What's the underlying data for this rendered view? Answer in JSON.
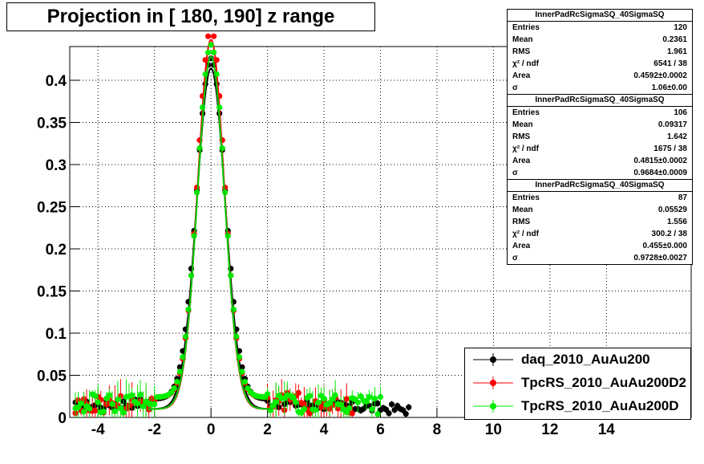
{
  "page_title": "Projection in [ 180, 190] z range",
  "chart_data": {
    "type": "scatter",
    "title": "Projection in [ 180, 190] z range",
    "xlabel": "",
    "ylabel": "",
    "xlim": [
      -5,
      17
    ],
    "ylim": [
      0,
      0.44
    ],
    "grid": true,
    "x_ticks": [
      -4,
      -2,
      0,
      2,
      4,
      6,
      8,
      10,
      12,
      14
    ],
    "y_ticks": [
      0,
      0.05,
      0.1,
      0.15,
      0.2,
      0.25,
      0.3,
      0.35,
      0.4
    ],
    "x_tick_labels": [
      "-4",
      "-2",
      "0",
      "2",
      "4",
      "6",
      "8",
      "10",
      "12",
      "14"
    ],
    "y_tick_labels": [
      "0",
      "0.05",
      "0.1",
      "0.15",
      "0.2",
      "0.25",
      "0.3",
      "0.35",
      "0.4"
    ],
    "legend_position": "bottom-right",
    "series": [
      {
        "name": "daq_2010_AuAu200",
        "color": "#000000",
        "fit_color": "#000000",
        "fit_amplitude": 0.404,
        "fit_sigma": 0.505,
        "xmin": -4.8,
        "xmax": 7.0,
        "bg": 0.022
      },
      {
        "name": "TpcRS_2010_AuAu200D2",
        "color": "#ff0000",
        "fit_color": "#ff0000",
        "fit_amplitude": 0.438,
        "fit_sigma": 0.47,
        "xmin": -4.8,
        "xmax": 5.0,
        "bg": 0.024
      },
      {
        "name": "TpcRS_2010_AuAu200D",
        "color": "#00ee00",
        "fit_color": "#00cc00",
        "fit_amplitude": 0.418,
        "fit_sigma": 0.48,
        "xmin": -4.8,
        "xmax": 6.0,
        "bg": 0.024
      }
    ]
  },
  "stats": [
    {
      "title": "InnerPadRcSigmaSQ_40SigmaSQ",
      "rows": [
        {
          "label": "Entries",
          "value": "120"
        },
        {
          "label": "Mean",
          "value": "0.2361"
        },
        {
          "label": "RMS",
          "value": "1.961"
        },
        {
          "label": "χ² / ndf",
          "value": "6541 / 38"
        },
        {
          "label": "Area",
          "value": "0.4592±0.0002"
        },
        {
          "label": "σ",
          "value": "1.06±0.00"
        }
      ]
    },
    {
      "title": "InnerPadRcSigmaSQ_40SigmaSQ",
      "rows": [
        {
          "label": "Entries",
          "value": "106"
        },
        {
          "label": "Mean",
          "value": "0.09317"
        },
        {
          "label": "RMS",
          "value": "1.642"
        },
        {
          "label": "χ² / ndf",
          "value": "1675 / 38"
        },
        {
          "label": "Area",
          "value": "0.4815±0.0002"
        },
        {
          "label": "σ",
          "value": "0.9684±0.0009"
        }
      ]
    },
    {
      "title": "InnerPadRcSigmaSQ_40SigmaSQ",
      "rows": [
        {
          "label": "Entries",
          "value": "87"
        },
        {
          "label": "Mean",
          "value": "0.05529"
        },
        {
          "label": "RMS",
          "value": "1.556"
        },
        {
          "label": "χ² / ndf",
          "value": "300.2 / 38"
        },
        {
          "label": "Area",
          "value": "0.455±0.000"
        },
        {
          "label": "σ",
          "value": "0.9728±0.0027"
        }
      ]
    }
  ],
  "legend": [
    {
      "label": "daq_2010_AuAu200",
      "color": "#000000"
    },
    {
      "label": "TpcRS_2010_AuAu200D2",
      "color": "#ff0000"
    },
    {
      "label": "TpcRS_2010_AuAu200D",
      "color": "#00ee00"
    }
  ]
}
